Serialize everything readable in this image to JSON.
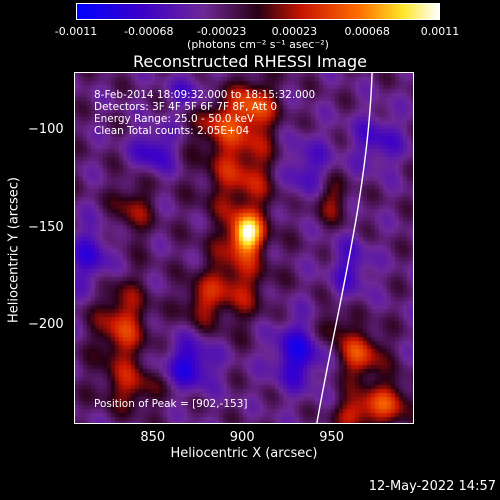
{
  "chart_data": {
    "type": "heatmap",
    "title": "Reconstructed RHESSI Image",
    "xlabel": "Heliocentric X (arcsec)",
    "ylabel": "Heliocentric Y (arcsec)",
    "xlim": [
      806,
      996
    ],
    "ylim": [
      -251,
      -70
    ],
    "x_ticks": [
      850,
      900,
      950
    ],
    "y_ticks": [
      -100,
      -150,
      -200
    ],
    "colorbar": {
      "label": "(photons cm⁻² s⁻¹ asec⁻²)",
      "range": [
        -0.0011,
        0.0011
      ],
      "tick_labels": [
        "-0.0011",
        "-0.00068",
        "-0.00023",
        "0.00023",
        "0.00068",
        "0.0011"
      ]
    },
    "peak": {
      "x": 902,
      "y": -153
    },
    "limb": {
      "x_at_top": 972,
      "x_at_bottom": 941
    },
    "sources": [
      {
        "x": 902,
        "y": -153,
        "sx": 6,
        "sy": 7,
        "amp": 0.00115
      },
      {
        "x": 899,
        "y": -120,
        "sx": 14,
        "sy": 22,
        "amp": 0.00055
      },
      {
        "x": 906,
        "y": -87,
        "sx": 8,
        "sy": 9,
        "amp": 0.0006
      },
      {
        "x": 895,
        "y": -178,
        "sx": 12,
        "sy": 14,
        "amp": 0.0005
      },
      {
        "x": 832,
        "y": -200,
        "sx": 10,
        "sy": 16,
        "amp": 0.0006
      },
      {
        "x": 838,
        "y": -232,
        "sx": 12,
        "sy": 8,
        "amp": 0.0004
      },
      {
        "x": 838,
        "y": -140,
        "sx": 8,
        "sy": 10,
        "amp": 0.0004
      },
      {
        "x": 948,
        "y": -135,
        "sx": 7,
        "sy": 8,
        "amp": 0.00045
      },
      {
        "x": 965,
        "y": -215,
        "sx": 9,
        "sy": 9,
        "amp": 0.00065
      },
      {
        "x": 980,
        "y": -240,
        "sx": 10,
        "sy": 8,
        "amp": 0.0006
      },
      {
        "x": 962,
        "y": -245,
        "sx": 8,
        "sy": 6,
        "amp": 0.0005
      },
      {
        "x": 876,
        "y": -188,
        "sx": 7,
        "sy": 8,
        "amp": 0.0004
      },
      {
        "x": 885,
        "y": -95,
        "sx": 9,
        "sy": 9,
        "amp": 0.0004
      },
      {
        "x": 950,
        "y": -200,
        "sx": 6,
        "sy": 6,
        "amp": 0.00035
      },
      {
        "x": 850,
        "y": -110,
        "sx": 8,
        "sy": 8,
        "amp": -0.0005
      },
      {
        "x": 870,
        "y": -220,
        "sx": 10,
        "sy": 9,
        "amp": -0.0006
      },
      {
        "x": 930,
        "y": -215,
        "sx": 10,
        "sy": 12,
        "amp": -0.0006
      },
      {
        "x": 935,
        "y": -120,
        "sx": 10,
        "sy": 12,
        "amp": -0.0004
      },
      {
        "x": 815,
        "y": -165,
        "sx": 9,
        "sy": 12,
        "amp": -0.00045
      },
      {
        "x": 975,
        "y": -105,
        "sx": 10,
        "sy": 10,
        "amp": -0.0004
      },
      {
        "x": 960,
        "y": -170,
        "sx": 8,
        "sy": 10,
        "amp": -0.0004
      },
      {
        "x": 870,
        "y": -80,
        "sx": 8,
        "sy": 7,
        "amp": -0.00035
      }
    ]
  },
  "info": {
    "time_range": "8-Feb-2014 18:09:32.000 to 18:15:32.000",
    "detectors": "Detectors: 3F 4F 5F 6F 7F 8F, Att 0",
    "energy": "Energy Range: 25.0 - 50.0 keV",
    "clean": "Clean    Total counts: 2.05E+04",
    "peak_text": "Position of Peak = [902,-153]"
  },
  "timestamp": "12-May-2022 14:57"
}
